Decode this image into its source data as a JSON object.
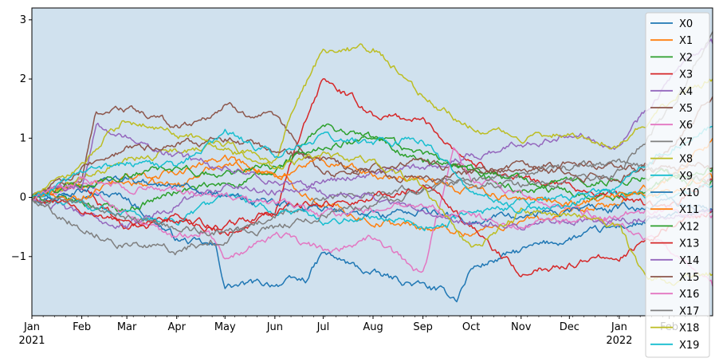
{
  "chart_data": {
    "type": "line",
    "title": "",
    "xlabel": "",
    "ylabel": "",
    "xlim": [
      "2021-01-01",
      "2022-02-28"
    ],
    "ylim": [
      -2.0,
      3.2
    ],
    "yticks": [
      -1,
      0,
      1,
      2,
      3
    ],
    "ytick_labels": [
      "−1",
      "0",
      "1",
      "2",
      "3"
    ],
    "xticks": [
      {
        "date": "2021-01-01",
        "label": "Jan",
        "sublabel": "2021"
      },
      {
        "date": "2021-02-01",
        "label": "Feb",
        "sublabel": ""
      },
      {
        "date": "2021-03-01",
        "label": "Mar",
        "sublabel": ""
      },
      {
        "date": "2021-04-01",
        "label": "Apr",
        "sublabel": ""
      },
      {
        "date": "2021-05-01",
        "label": "May",
        "sublabel": ""
      },
      {
        "date": "2021-06-01",
        "label": "Jun",
        "sublabel": ""
      },
      {
        "date": "2021-07-01",
        "label": "Jul",
        "sublabel": ""
      },
      {
        "date": "2021-08-01",
        "label": "Aug",
        "sublabel": ""
      },
      {
        "date": "2021-09-01",
        "label": "Sep",
        "sublabel": ""
      },
      {
        "date": "2021-10-01",
        "label": "Oct",
        "sublabel": ""
      },
      {
        "date": "2021-11-01",
        "label": "Nov",
        "sublabel": ""
      },
      {
        "date": "2021-12-01",
        "label": "Dec",
        "sublabel": ""
      },
      {
        "date": "2022-01-01",
        "label": "Jan",
        "sublabel": "2022"
      },
      {
        "date": "2022-02-01",
        "label": "Feb",
        "sublabel": ""
      }
    ],
    "grid": false,
    "legend_position": "right",
    "plot_background": "#d0e1ee",
    "series": [
      {
        "name": "X0",
        "color": "#1f77b4",
        "x": [
          "2021-01-01",
          "2021-02-01",
          "2021-03-01",
          "2021-04-01",
          "2021-04-25",
          "2021-05-01",
          "2021-06-01",
          "2021-06-20",
          "2021-07-01",
          "2021-08-01",
          "2021-09-01",
          "2021-09-22",
          "2021-10-01",
          "2021-11-01",
          "2021-12-01",
          "2022-01-01",
          "2022-02-01",
          "2022-02-28"
        ],
        "y": [
          0.0,
          0.1,
          0.0,
          -0.7,
          -0.85,
          -1.5,
          -1.45,
          -1.4,
          -0.95,
          -1.3,
          -1.5,
          -1.7,
          -1.2,
          -0.9,
          -0.7,
          -0.5,
          -0.35,
          -0.25
        ]
      },
      {
        "name": "X1",
        "color": "#ff7f0e",
        "x": [
          "2021-01-01",
          "2021-02-01",
          "2021-03-01",
          "2021-04-01",
          "2021-05-01",
          "2021-06-01",
          "2021-07-01",
          "2021-08-01",
          "2021-09-01",
          "2021-10-01",
          "2021-11-01",
          "2021-12-01",
          "2022-01-01",
          "2022-02-01",
          "2022-02-28"
        ],
        "y": [
          0.0,
          0.2,
          0.25,
          0.2,
          0.6,
          0.4,
          -0.1,
          -0.4,
          -0.5,
          -0.6,
          -0.4,
          -0.3,
          -0.1,
          0.3,
          1.0
        ]
      },
      {
        "name": "X2",
        "color": "#2ca02c",
        "x": [
          "2021-01-01",
          "2021-02-01",
          "2021-03-01",
          "2021-04-01",
          "2021-05-01",
          "2021-06-01",
          "2021-07-01",
          "2021-08-01",
          "2021-09-01",
          "2021-10-01",
          "2021-11-01",
          "2021-12-01",
          "2022-01-01",
          "2022-02-01",
          "2022-02-28"
        ],
        "y": [
          0.0,
          -0.1,
          -0.2,
          0.1,
          0.2,
          0.4,
          1.2,
          1.0,
          0.6,
          0.4,
          0.1,
          0.1,
          0.0,
          0.3,
          0.3
        ]
      },
      {
        "name": "X3",
        "color": "#d62728",
        "x": [
          "2021-01-01",
          "2021-02-01",
          "2021-03-01",
          "2021-04-01",
          "2021-05-01",
          "2021-06-01",
          "2021-06-15",
          "2021-07-01",
          "2021-08-01",
          "2021-09-01",
          "2021-10-01",
          "2021-11-01",
          "2021-12-01",
          "2022-01-01",
          "2022-02-01",
          "2022-02-28"
        ],
        "y": [
          0.0,
          0.2,
          -0.5,
          -0.3,
          -0.6,
          -0.3,
          0.9,
          2.0,
          1.4,
          1.3,
          0.6,
          0.3,
          0.2,
          0.0,
          -0.2,
          0.3
        ]
      },
      {
        "name": "X4",
        "color": "#9467bd",
        "x": [
          "2021-01-01",
          "2021-02-01",
          "2021-03-01",
          "2021-04-01",
          "2021-05-01",
          "2021-06-01",
          "2021-07-01",
          "2021-08-01",
          "2021-09-01",
          "2021-10-01",
          "2021-11-01",
          "2021-12-01",
          "2022-01-01",
          "2022-02-01",
          "2022-02-28"
        ],
        "y": [
          0.0,
          -0.3,
          -0.5,
          -0.1,
          0.2,
          0.1,
          0.3,
          0.4,
          0.5,
          0.7,
          0.9,
          1.1,
          0.9,
          2.0,
          2.6
        ]
      },
      {
        "name": "X5",
        "color": "#8c564b",
        "x": [
          "2021-01-01",
          "2021-02-01",
          "2021-02-10",
          "2021-03-01",
          "2021-04-01",
          "2021-04-15",
          "2021-05-01",
          "2021-06-01",
          "2021-07-01",
          "2021-08-01",
          "2021-09-01",
          "2021-10-01",
          "2021-11-01",
          "2021-12-01",
          "2022-01-01",
          "2022-02-01",
          "2022-02-28"
        ],
        "y": [
          0.0,
          0.3,
          1.45,
          1.5,
          1.2,
          1.3,
          1.55,
          1.3,
          0.4,
          0.5,
          0.6,
          0.4,
          0.5,
          0.6,
          0.5,
          0.5,
          0.5
        ]
      },
      {
        "name": "X6",
        "color": "#e377c2",
        "x": [
          "2021-01-01",
          "2021-02-01",
          "2021-03-01",
          "2021-04-01",
          "2021-04-20",
          "2021-05-01",
          "2021-06-01",
          "2021-07-01",
          "2021-08-01",
          "2021-09-01",
          "2021-09-20",
          "2021-10-01",
          "2021-11-01",
          "2021-12-01",
          "2022-01-01",
          "2022-02-01",
          "2022-02-28"
        ],
        "y": [
          0.0,
          0.2,
          -0.3,
          -0.7,
          -0.5,
          -1.0,
          -0.6,
          -0.9,
          -0.7,
          -1.3,
          0.8,
          0.3,
          0.0,
          -0.2,
          -0.4,
          -0.9,
          -1.5
        ]
      },
      {
        "name": "X7",
        "color": "#7f7f7f",
        "x": [
          "2021-01-01",
          "2021-02-01",
          "2021-03-01",
          "2021-04-01",
          "2021-05-01",
          "2021-06-01",
          "2021-07-01",
          "2021-08-01",
          "2021-09-01",
          "2021-10-01",
          "2021-11-01",
          "2021-12-01",
          "2022-01-01",
          "2022-02-01",
          "2022-02-28"
        ],
        "y": [
          0.0,
          -0.5,
          -0.8,
          -0.9,
          -0.7,
          -0.3,
          0.0,
          0.1,
          0.2,
          0.3,
          0.4,
          0.5,
          0.6,
          0.4,
          0.3
        ]
      },
      {
        "name": "X8",
        "color": "#bcbd22",
        "x": [
          "2021-01-01",
          "2021-02-01",
          "2021-03-01",
          "2021-04-01",
          "2021-05-01",
          "2021-06-01",
          "2021-06-10",
          "2021-07-01",
          "2021-08-01",
          "2021-09-01",
          "2021-10-01",
          "2021-11-01",
          "2021-12-01",
          "2022-01-01",
          "2022-02-01",
          "2022-02-28"
        ],
        "y": [
          0.0,
          0.3,
          0.6,
          0.8,
          0.9,
          0.6,
          1.3,
          2.5,
          2.5,
          1.7,
          1.2,
          1.0,
          1.1,
          0.9,
          1.6,
          2.0
        ]
      },
      {
        "name": "X9",
        "color": "#17becf",
        "x": [
          "2021-01-01",
          "2021-02-01",
          "2021-03-01",
          "2021-04-01",
          "2021-05-01",
          "2021-06-01",
          "2021-07-01",
          "2021-08-01",
          "2021-09-01",
          "2021-10-01",
          "2021-11-01",
          "2021-12-01",
          "2022-01-01",
          "2022-02-01",
          "2022-02-28"
        ],
        "y": [
          0.0,
          -0.1,
          -0.3,
          -0.4,
          0.0,
          -0.2,
          -0.4,
          -0.3,
          -0.5,
          -0.3,
          -0.1,
          0.0,
          0.1,
          0.0,
          0.2
        ]
      },
      {
        "name": "X10",
        "color": "#1f77b4",
        "x": [
          "2021-01-01",
          "2021-02-01",
          "2021-03-01",
          "2021-04-01",
          "2021-05-01",
          "2021-06-01",
          "2021-07-01",
          "2021-08-01",
          "2021-09-01",
          "2021-10-01",
          "2021-11-01",
          "2021-12-01",
          "2022-01-01",
          "2022-02-01",
          "2022-02-28"
        ],
        "y": [
          0.0,
          0.1,
          0.3,
          0.2,
          0.0,
          -0.1,
          -0.2,
          -0.3,
          -0.2,
          -0.4,
          -0.3,
          -0.2,
          -0.2,
          -0.1,
          -0.2
        ]
      },
      {
        "name": "X11",
        "color": "#ff7f0e",
        "x": [
          "2021-01-01",
          "2021-02-01",
          "2021-03-01",
          "2021-04-01",
          "2021-05-01",
          "2021-06-01",
          "2021-07-01",
          "2021-08-01",
          "2021-09-01",
          "2021-10-01",
          "2021-11-01",
          "2021-12-01",
          "2022-01-01",
          "2022-02-01",
          "2022-02-28"
        ],
        "y": [
          0.0,
          0.0,
          0.3,
          0.4,
          0.7,
          0.3,
          0.6,
          0.4,
          0.3,
          0.1,
          0.0,
          -0.1,
          0.0,
          0.1,
          0.3
        ]
      },
      {
        "name": "X12",
        "color": "#2ca02c",
        "x": [
          "2021-01-01",
          "2021-02-01",
          "2021-03-01",
          "2021-04-01",
          "2021-05-01",
          "2021-06-01",
          "2021-07-01",
          "2021-08-01",
          "2021-09-01",
          "2021-10-01",
          "2021-11-01",
          "2021-12-01",
          "2022-01-01",
          "2022-02-01",
          "2022-02-28"
        ],
        "y": [
          0.0,
          0.2,
          0.4,
          0.5,
          0.4,
          0.5,
          0.9,
          1.0,
          0.7,
          0.5,
          0.3,
          0.2,
          0.3,
          0.4,
          0.5
        ]
      },
      {
        "name": "X13",
        "color": "#d62728",
        "x": [
          "2021-01-01",
          "2021-02-01",
          "2021-03-01",
          "2021-04-01",
          "2021-05-01",
          "2021-06-01",
          "2021-07-01",
          "2021-08-01",
          "2021-09-01",
          "2021-10-01",
          "2021-11-01",
          "2021-12-01",
          "2022-01-01",
          "2022-02-01",
          "2022-02-28"
        ],
        "y": [
          0.0,
          -0.2,
          -0.5,
          -0.4,
          -0.5,
          -0.2,
          -0.1,
          0.0,
          0.2,
          -0.5,
          -1.3,
          -1.1,
          -1.0,
          -0.5,
          -0.2
        ]
      },
      {
        "name": "X14",
        "color": "#9467bd",
        "x": [
          "2021-01-01",
          "2021-02-01",
          "2021-02-10",
          "2021-03-01",
          "2021-04-01",
          "2021-05-01",
          "2021-06-01",
          "2021-07-01",
          "2021-08-01",
          "2021-09-01",
          "2021-10-01",
          "2021-11-01",
          "2021-12-01",
          "2022-01-01",
          "2022-02-01",
          "2022-02-28"
        ],
        "y": [
          0.0,
          0.2,
          1.2,
          1.0,
          0.7,
          0.5,
          0.3,
          0.1,
          0.0,
          -0.2,
          -0.4,
          -0.5,
          -0.4,
          -0.4,
          -0.3,
          -0.2
        ]
      },
      {
        "name": "X15",
        "color": "#8c564b",
        "x": [
          "2021-01-01",
          "2021-02-01",
          "2021-03-01",
          "2021-04-01",
          "2021-05-01",
          "2021-06-01",
          "2021-07-01",
          "2021-08-01",
          "2021-09-01",
          "2021-10-01",
          "2021-11-01",
          "2021-12-01",
          "2022-01-01",
          "2022-02-01",
          "2022-02-28"
        ],
        "y": [
          0.0,
          0.5,
          0.8,
          0.9,
          1.0,
          0.8,
          0.6,
          0.4,
          0.3,
          0.4,
          0.5,
          0.4,
          0.3,
          0.8,
          1.7
        ]
      },
      {
        "name": "X16",
        "color": "#e377c2",
        "x": [
          "2021-01-01",
          "2021-02-01",
          "2021-03-01",
          "2021-04-01",
          "2021-05-01",
          "2021-06-01",
          "2021-07-01",
          "2021-08-01",
          "2021-09-01",
          "2021-10-01",
          "2021-11-01",
          "2021-12-01",
          "2022-01-01",
          "2022-02-01",
          "2022-02-28"
        ],
        "y": [
          0.0,
          0.3,
          0.2,
          0.1,
          0.0,
          -0.1,
          -0.3,
          -0.2,
          -0.1,
          -0.3,
          -0.5,
          -0.4,
          -0.3,
          -0.2,
          -0.3
        ]
      },
      {
        "name": "X17",
        "color": "#7f7f7f",
        "x": [
          "2021-01-01",
          "2021-02-01",
          "2021-03-01",
          "2021-04-01",
          "2021-05-01",
          "2021-06-01",
          "2021-07-01",
          "2021-08-01",
          "2021-09-01",
          "2021-10-01",
          "2021-11-01",
          "2021-12-01",
          "2022-01-01",
          "2022-02-01",
          "2022-02-28"
        ],
        "y": [
          0.0,
          -0.1,
          -0.3,
          -0.5,
          -0.6,
          -0.5,
          -0.3,
          -0.1,
          0.1,
          0.3,
          0.2,
          0.3,
          0.4,
          1.5,
          2.8
        ]
      },
      {
        "name": "X18",
        "color": "#bcbd22",
        "x": [
          "2021-01-01",
          "2021-02-01",
          "2021-02-15",
          "2021-03-01",
          "2021-04-01",
          "2021-05-01",
          "2021-06-01",
          "2021-07-01",
          "2021-08-01",
          "2021-09-01",
          "2021-10-01",
          "2021-11-01",
          "2021-12-01",
          "2022-01-01",
          "2022-01-15",
          "2022-02-01",
          "2022-02-28"
        ],
        "y": [
          0.0,
          0.5,
          1.0,
          1.3,
          1.1,
          0.8,
          0.5,
          0.7,
          0.6,
          0.2,
          -0.9,
          -0.2,
          -0.3,
          -0.5,
          -1.3,
          -1.4,
          -1.3
        ]
      },
      {
        "name": "X19",
        "color": "#17becf",
        "x": [
          "2021-01-01",
          "2021-02-01",
          "2021-03-01",
          "2021-04-01",
          "2021-05-01",
          "2021-06-01",
          "2021-07-01",
          "2021-08-01",
          "2021-09-01",
          "2021-10-01",
          "2021-11-01",
          "2021-12-01",
          "2022-01-01",
          "2022-02-01",
          "2022-02-28"
        ],
        "y": [
          0.0,
          0.4,
          0.6,
          0.5,
          1.1,
          0.7,
          1.0,
          0.9,
          1.0,
          0.1,
          -0.2,
          -0.1,
          0.2,
          0.8,
          1.2
        ]
      }
    ]
  }
}
